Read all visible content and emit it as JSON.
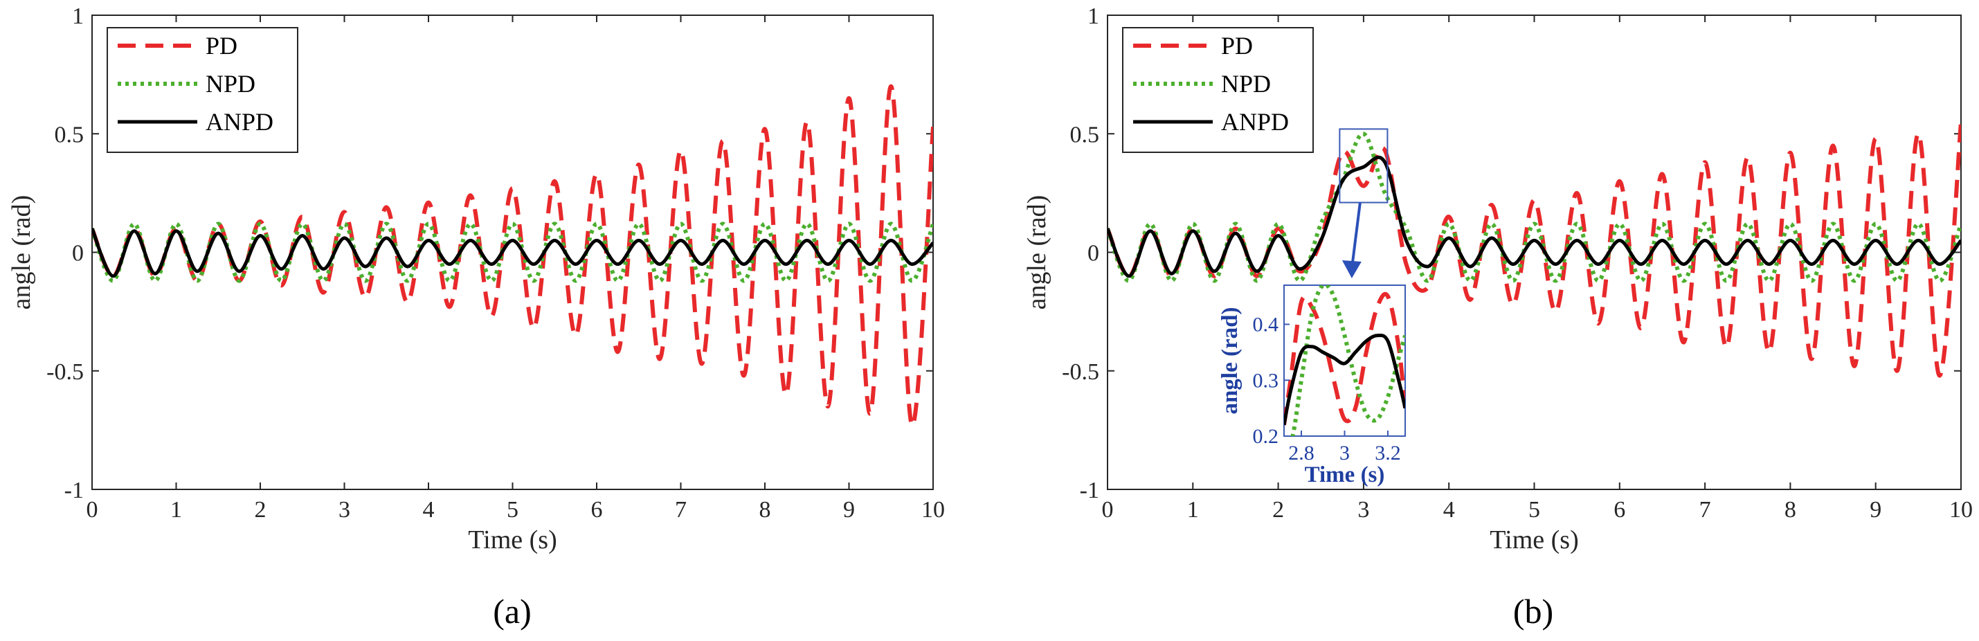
{
  "chart_data": [
    {
      "type": "line",
      "caption": "(a)",
      "xlabel": "Time (s)",
      "ylabel": "angle (rad)",
      "xlim": [
        0,
        10
      ],
      "ylim": [
        -1,
        1
      ],
      "xticks": [
        "0",
        "1",
        "2",
        "3",
        "4",
        "5",
        "6",
        "7",
        "8",
        "9",
        "10"
      ],
      "yticks": [
        "-1",
        "-0.5",
        "0",
        "0.5",
        "1"
      ],
      "legend": "top-left",
      "series": [
        {
          "name": "PD",
          "color": "#e8292b",
          "style": "dashed",
          "x": [
            0,
            0.25,
            0.5,
            0.75,
            1,
            1.25,
            1.5,
            1.75,
            2,
            2.25,
            2.5,
            2.75,
            3,
            3.25,
            3.5,
            3.75,
            4,
            4.25,
            4.5,
            4.75,
            5,
            5.25,
            5.5,
            5.75,
            6,
            6.25,
            6.5,
            6.75,
            7,
            7.25,
            7.5,
            7.75,
            8,
            8.25,
            8.5,
            8.75,
            9,
            9.25,
            9.5,
            9.75,
            10
          ],
          "y": [
            0.1,
            -0.1,
            0.1,
            -0.1,
            0.1,
            -0.12,
            0.12,
            -0.12,
            0.13,
            -0.14,
            0.15,
            -0.17,
            0.17,
            -0.19,
            0.19,
            -0.21,
            0.21,
            -0.23,
            0.24,
            -0.27,
            0.27,
            -0.32,
            0.3,
            -0.35,
            0.33,
            -0.42,
            0.37,
            -0.45,
            0.43,
            -0.47,
            0.47,
            -0.52,
            0.52,
            -0.6,
            0.55,
            -0.65,
            0.65,
            -0.68,
            0.7,
            -0.73,
            0.53
          ]
        },
        {
          "name": "NPD",
          "color": "#4caf2e",
          "style": "dotted",
          "x": [
            0,
            0.25,
            0.5,
            0.75,
            1,
            1.25,
            1.5,
            1.75,
            2,
            2.25,
            2.5,
            2.75,
            3,
            3.25,
            3.5,
            3.75,
            4,
            4.25,
            4.5,
            4.75,
            5,
            5.25,
            5.5,
            5.75,
            6,
            6.25,
            6.5,
            6.75,
            7,
            7.25,
            7.5,
            7.75,
            8,
            8.25,
            8.5,
            8.75,
            9,
            9.25,
            9.5,
            9.75,
            10
          ],
          "y": [
            0.1,
            -0.12,
            0.12,
            -0.12,
            0.12,
            -0.12,
            0.12,
            -0.12,
            0.12,
            -0.12,
            0.12,
            -0.12,
            0.12,
            -0.12,
            0.12,
            -0.12,
            0.12,
            -0.12,
            0.12,
            -0.12,
            0.12,
            -0.12,
            0.12,
            -0.12,
            0.12,
            -0.12,
            0.12,
            -0.12,
            0.12,
            -0.12,
            0.12,
            -0.12,
            0.12,
            -0.12,
            0.12,
            -0.12,
            0.12,
            -0.12,
            0.12,
            -0.12,
            0.12
          ]
        },
        {
          "name": "ANPD",
          "color": "#000000",
          "style": "solid",
          "x": [
            0,
            0.25,
            0.5,
            0.75,
            1,
            1.25,
            1.5,
            1.75,
            2,
            2.25,
            2.5,
            2.75,
            3,
            3.25,
            3.5,
            3.75,
            4,
            4.25,
            4.5,
            4.75,
            5,
            5.25,
            5.5,
            5.75,
            6,
            6.25,
            6.5,
            6.75,
            7,
            7.25,
            7.5,
            7.75,
            8,
            8.25,
            8.5,
            8.75,
            9,
            9.25,
            9.5,
            9.75,
            10
          ],
          "y": [
            0.1,
            -0.1,
            0.09,
            -0.09,
            0.09,
            -0.08,
            0.08,
            -0.08,
            0.07,
            -0.07,
            0.07,
            -0.07,
            0.06,
            -0.06,
            0.06,
            -0.06,
            0.05,
            -0.05,
            0.05,
            -0.05,
            0.05,
            -0.05,
            0.05,
            -0.05,
            0.05,
            -0.05,
            0.05,
            -0.05,
            0.05,
            -0.05,
            0.05,
            -0.05,
            0.05,
            -0.05,
            0.05,
            -0.05,
            0.05,
            -0.05,
            0.05,
            -0.05,
            0.04
          ]
        }
      ]
    },
    {
      "type": "line",
      "caption": "(b)",
      "xlabel": "Time (s)",
      "ylabel": "angle (rad)",
      "xlim": [
        0,
        10
      ],
      "ylim": [
        -1,
        1
      ],
      "xticks": [
        "0",
        "1",
        "2",
        "3",
        "4",
        "5",
        "6",
        "7",
        "8",
        "9",
        "10"
      ],
      "yticks": [
        "-1",
        "-0.5",
        "0",
        "0.5",
        "1"
      ],
      "legend": "top-left",
      "series": [
        {
          "name": "PD",
          "color": "#e8292b",
          "style": "dashed",
          "x": [
            0,
            0.25,
            0.5,
            0.75,
            1,
            1.25,
            1.5,
            1.75,
            2,
            2.25,
            2.5,
            2.75,
            3,
            3.25,
            3.5,
            3.75,
            4,
            4.25,
            4.5,
            4.75,
            5,
            5.25,
            5.5,
            5.75,
            6,
            6.25,
            6.5,
            6.75,
            7,
            7.25,
            7.5,
            7.75,
            8,
            8.25,
            8.5,
            8.75,
            9,
            9.25,
            9.5,
            9.75,
            10
          ],
          "y": [
            0.1,
            -0.1,
            0.1,
            -0.1,
            0.1,
            -0.1,
            0.1,
            -0.1,
            0.1,
            -0.08,
            0.05,
            0.42,
            0.28,
            0.43,
            -0.05,
            -0.15,
            0.15,
            -0.2,
            0.2,
            -0.22,
            0.22,
            -0.25,
            0.25,
            -0.3,
            0.3,
            -0.32,
            0.33,
            -0.38,
            0.38,
            -0.4,
            0.4,
            -0.42,
            0.42,
            -0.45,
            0.45,
            -0.48,
            0.48,
            -0.5,
            0.5,
            -0.52,
            0.55
          ]
        },
        {
          "name": "NPD",
          "color": "#4caf2e",
          "style": "dotted",
          "x": [
            0,
            0.25,
            0.5,
            0.75,
            1,
            1.25,
            1.5,
            1.75,
            2,
            2.25,
            2.5,
            2.75,
            3,
            3.25,
            3.5,
            3.75,
            4,
            4.25,
            4.5,
            4.75,
            5,
            5.25,
            5.5,
            5.75,
            6,
            6.25,
            6.5,
            6.75,
            7,
            7.25,
            7.5,
            7.75,
            8,
            8.25,
            8.5,
            8.75,
            9,
            9.25,
            9.5,
            9.75,
            10
          ],
          "y": [
            0.1,
            -0.12,
            0.12,
            -0.12,
            0.12,
            -0.12,
            0.12,
            -0.12,
            0.12,
            -0.12,
            0.12,
            0.3,
            0.5,
            0.25,
            0.1,
            -0.12,
            0.12,
            -0.12,
            0.12,
            -0.12,
            0.12,
            -0.12,
            0.12,
            -0.12,
            0.12,
            -0.12,
            0.12,
            -0.12,
            0.12,
            -0.12,
            0.12,
            -0.12,
            0.12,
            -0.12,
            0.12,
            -0.12,
            0.12,
            -0.12,
            0.12,
            -0.12,
            0.12
          ]
        },
        {
          "name": "ANPD",
          "color": "#000000",
          "style": "solid",
          "x": [
            0,
            0.25,
            0.5,
            0.75,
            1,
            1.25,
            1.5,
            1.75,
            2,
            2.25,
            2.5,
            2.75,
            3,
            3.25,
            3.5,
            3.75,
            4,
            4.25,
            4.5,
            4.75,
            5,
            5.25,
            5.5,
            5.75,
            6,
            6.25,
            6.5,
            6.75,
            7,
            7.25,
            7.5,
            7.75,
            8,
            8.25,
            8.5,
            8.75,
            9,
            9.25,
            9.5,
            9.75,
            10
          ],
          "y": [
            0.1,
            -0.1,
            0.09,
            -0.09,
            0.09,
            -0.08,
            0.08,
            -0.08,
            0.07,
            -0.07,
            0.05,
            0.3,
            0.36,
            0.38,
            0.05,
            -0.06,
            0.06,
            -0.06,
            0.06,
            -0.05,
            0.05,
            -0.05,
            0.05,
            -0.05,
            0.05,
            -0.05,
            0.05,
            -0.05,
            0.05,
            -0.05,
            0.05,
            -0.05,
            0.05,
            -0.05,
            0.05,
            -0.05,
            0.05,
            -0.05,
            0.05,
            -0.05,
            0.05
          ]
        }
      ],
      "inset": {
        "xlabel": "Time (s)",
        "ylabel": "angle (rad)",
        "xlim": [
          2.72,
          3.28
        ],
        "ylim": [
          0.2,
          0.47
        ],
        "xticks": [
          "2.8",
          "3",
          "3.2"
        ],
        "yticks": [
          "0.2",
          "0.3",
          "0.4"
        ],
        "series": [
          {
            "name": "PD",
            "x": [
              2.72,
              2.75,
              2.8,
              2.85,
              2.9,
              2.95,
              3.0,
              3.05,
              3.1,
              3.15,
              3.2,
              3.25,
              3.28
            ],
            "y": [
              0.22,
              0.3,
              0.44,
              0.43,
              0.38,
              0.3,
              0.23,
              0.25,
              0.35,
              0.43,
              0.45,
              0.36,
              0.25
            ]
          },
          {
            "name": "NPD",
            "x": [
              2.72,
              2.76,
              2.8,
              2.85,
              2.9,
              2.95,
              3.0,
              3.05,
              3.1,
              3.15,
              3.2,
              3.25,
              3.28
            ],
            "y": [
              0.16,
              0.2,
              0.3,
              0.42,
              0.47,
              0.45,
              0.38,
              0.3,
              0.24,
              0.23,
              0.27,
              0.34,
              0.38
            ]
          },
          {
            "name": "ANPD",
            "x": [
              2.72,
              2.75,
              2.8,
              2.85,
              2.9,
              2.95,
              3.0,
              3.05,
              3.1,
              3.15,
              3.2,
              3.25,
              3.28
            ],
            "y": [
              0.22,
              0.28,
              0.35,
              0.36,
              0.35,
              0.34,
              0.33,
              0.35,
              0.37,
              0.38,
              0.37,
              0.3,
              0.25
            ]
          }
        ]
      }
    }
  ]
}
